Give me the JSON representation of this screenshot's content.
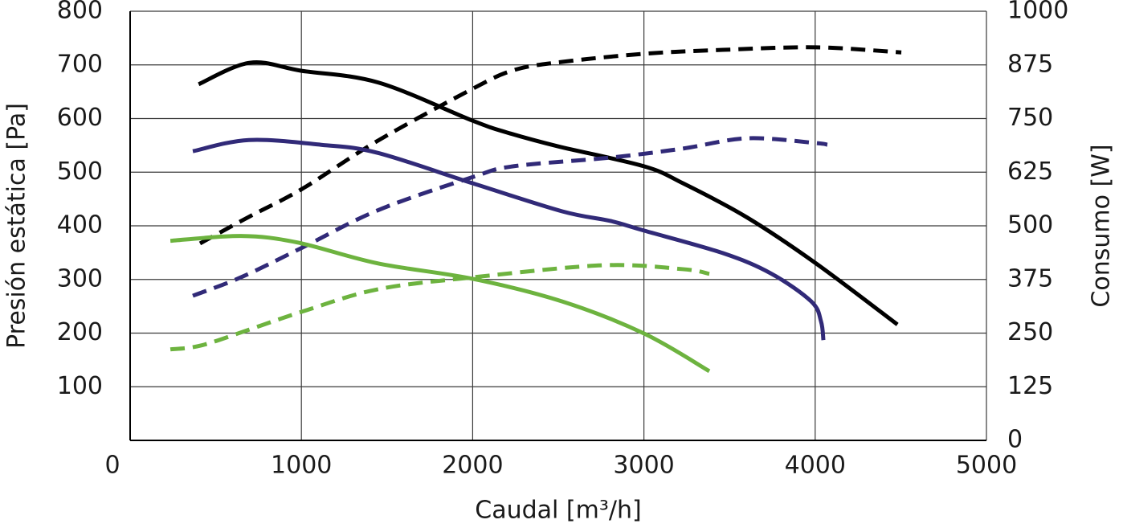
{
  "chart_data": {
    "type": "line",
    "x_label": "Caudal [m³/h]",
    "y_label": "Presión estática [Pa]",
    "y2_label": "Consumo [W]",
    "xlim": [
      0,
      5000
    ],
    "xticks": [
      0,
      1000,
      2000,
      3000,
      4000,
      5000
    ],
    "ylim": [
      0,
      800
    ],
    "yticks": [
      100,
      200,
      300,
      400,
      500,
      600,
      700,
      800
    ],
    "y2lim": [
      0,
      1000
    ],
    "y2ticks": [
      0,
      125,
      250,
      375,
      500,
      625,
      750,
      875,
      1000
    ],
    "grid": true,
    "series": [
      {
        "color": "#000000",
        "style": "solid",
        "x": [
          400,
          700,
          1000,
          1450,
          2000,
          2200,
          2500,
          3000,
          3230,
          3600,
          4000,
          4480
        ],
        "values": [
          664,
          704,
          689,
          667,
          596,
          574,
          548,
          511,
          479,
          416,
          331,
          216
        ]
      },
      {
        "color": "#000000",
        "style": "dashed",
        "axis": "y2",
        "x": [
          408,
          694,
          1004,
          1445,
          2003,
          2242,
          2523,
          3002,
          3462,
          4001,
          4503
        ],
        "values": [
          459,
          521,
          586,
          698,
          820,
          863,
          882,
          901,
          910,
          916,
          904
        ]
      },
      {
        "color": "#312a78",
        "style": "solid",
        "x": [
          366,
          694,
          1116,
          1445,
          2003,
          2523,
          2805,
          3002,
          3462,
          3743,
          3977,
          4034,
          4048
        ],
        "values": [
          539,
          560,
          551,
          536,
          479,
          427,
          409,
          391,
          349,
          311,
          259,
          222,
          187
        ]
      },
      {
        "color": "#312a78",
        "style": "dashed",
        "axis": "y2",
        "x": [
          366,
          647,
          1004,
          1445,
          2003,
          2242,
          2805,
          3227,
          3602,
          4001,
          4071
        ],
        "values": [
          337,
          380,
          449,
          536,
          614,
          639,
          659,
          680,
          704,
          693,
          689
        ]
      },
      {
        "color": "#6db33f",
        "style": "solid",
        "x": [
          235,
          647,
          976,
          1445,
          2003,
          2523,
          3002,
          3382
        ],
        "values": [
          372,
          381,
          369,
          330,
          301,
          259,
          199,
          129
        ]
      },
      {
        "color": "#6db33f",
        "style": "dashed",
        "axis": "y2",
        "x": [
          235,
          413,
          694,
          1004,
          1445,
          2003,
          2758,
          3227,
          3382
        ],
        "values": [
          212,
          221,
          258,
          300,
          352,
          380,
          408,
          399,
          388
        ]
      }
    ]
  }
}
